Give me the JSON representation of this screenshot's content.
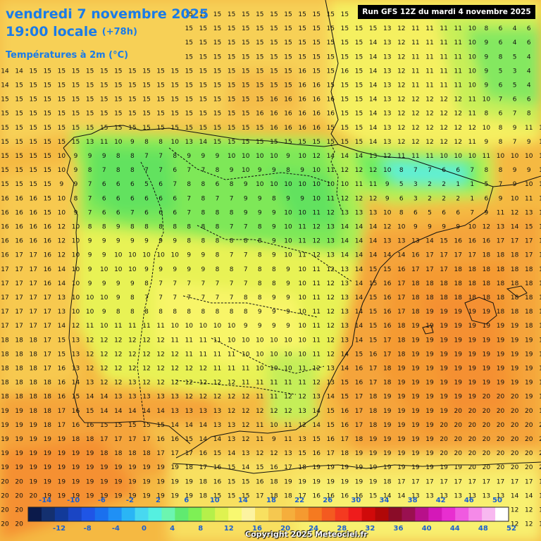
{
  "header": {
    "date": "vendredi 7 novembre 2025",
    "time": "19:00 locale",
    "offset": "(+78h)",
    "variable": "Températures à 2m (°C)"
  },
  "run_info": "Run GFS 12Z du mardi 4 novembre 2025",
  "copyright": "Copyright 2025 Meteociel.fr",
  "legend": {
    "upper_labels": [
      "-14",
      "-10",
      "-6",
      "-2",
      "2",
      "6",
      "10",
      "14",
      "18",
      "22",
      "26",
      "30",
      "34",
      "38",
      "42",
      "46",
      "50"
    ],
    "lower_labels": [
      "-12",
      "-8",
      "-4",
      "0",
      "4",
      "8",
      "12",
      "16",
      "20",
      "24",
      "28",
      "32",
      "36",
      "40",
      "44",
      "48",
      "52"
    ],
    "colors": [
      "#0b1a4a",
      "#14306f",
      "#123a99",
      "#1a45c4",
      "#1f55e6",
      "#1a70ee",
      "#1f90f5",
      "#2ab5f5",
      "#48d8f0",
      "#55f0e0",
      "#6cf5b0",
      "#60ea70",
      "#7ef055",
      "#b5f04a",
      "#dff250",
      "#f8f870",
      "#fcf3a0",
      "#f8e060",
      "#f5c850",
      "#f5ae3c",
      "#f59a30",
      "#f57a20",
      "#f45a20",
      "#f43a20",
      "#ee1c1c",
      "#d00a0a",
      "#b00808",
      "#8a0c28",
      "#9a1050",
      "#b8108a",
      "#d418b8",
      "#e82ed0",
      "#f05ae0",
      "#f58ae8",
      "#f8b8f0",
      "#ffffff"
    ]
  },
  "map_values": {
    "row_00": "14 14 14 15 15 15 15 15 15 15 15 15 15 15 15 15 15 15 15 15 15 15 15 15 15 15 15 12 11 11 11 11 11 10 8 6 7 8 9",
    "row_01": "14 14 14 14 15 15 15 15 15 15 15 15 15 15 15 15 15 15 15 15 15 15 15 15 15 15 15 13 12 11 11 11 11 10 8 6 4 6 6",
    "row_02": "14 15 15 15 15 15 15 15 15 15 15 15 15 15 15 15 15 15 15 15 15 15 15 15 15 15 14 13 12 11 11 11 11 10 9 6 4 6 5",
    "row_03": "14 15 15 15 15 15 15 15 15 15 15 15 15 15 15 15 15 15 15 15 15 15 15 15 15 15 14 13 12 11 11 11 11 10 9 8 5 4 7",
    "row_04": "14 14 15 15 15 15 15 15 15 15 15 15 15 15 15 15 15 15 15 15 15 16 15 15 16 15 14 13 12 11 11 11 11 10 9 5 3 4 6",
    "row_05": "14 15 15 15 15 15 15 15 15 15 15 15 15 15 15 15 15 15 15 15 15 16 16 15 15 15 14 13 12 11 11 11 11 10 9 6 5 4 8",
    "row_06": "15 15 15 15 15 15 15 15 15 15 15 15 15 15 15 15 15 15 15 16 16 16 16 16 15 15 14 13 12 12 12 12 12 11 10 7 6 6 8",
    "row_07": "15 15 15 15 15 15 15 15 15 15 15 15 15 15 15 15 15 15 16 16 16 16 16 16 15 15 14 13 12 12 12 12 12 11 8 6 7 8 9",
    "row_08": "15 15 15 15 15 15 15 15 15 15 15 15 15 15 15 15 15 15 15 16 16 16 16 15 15 15 14 13 12 12 12 12 12 12 10 8 9 11 11",
    "row_09": "15 15 15 15 15 15 13 11 10 9 8 8 10 13 14 15 15 15 15 15 15 15 15 15 15 15 14 13 12 12 12 12 12 11 9 8 7 9 10",
    "row_10": "15 15 15 15 10 9 9 9 8 8 7 7 8 9 9 9 10 10 10 10 9 10 12 14 14 14 13 12 11 11 11 10 10 10 11 10 10 10 11",
    "row_11": "15 15 15 15 10 9 8 7 8 8 7 7 6 7 7 8 9 10 9 9 8 9 10 11 12 12 12 10 8 7 7 6 6 7 8 8 9 9 10",
    "row_12": "15 15 15 15 9 9 7 6 6 6 5 6 7 8 8 6 8 9 10 10 10 10 10 10 10 11 11 9 5 3 2 2 1 1 5 7 9 10 11",
    "row_13": "16 16 16 15 10 8 7 6 6 6 6 6 6 7 8 7 7 9 9 8 9 9 10 11 12 12 12 9 6 3 2 2 2 1 6 9 10 11 12",
    "row_14": "16 16 16 15 10 9 7 6 6 7 6 6 6 7 8 8 8 9 9 9 10 10 11 12 13 13 13 10 8 6 5 6 6 7 9 11 12 13 14",
    "row_15": "16 16 16 16 12 10 8 8 9 8 8 8 8 8 8 8 7 7 8 9 10 11 12 13 14 14 14 12 10 9 9 9 9 10 12 13 14 15 16",
    "row_16": "16 16 16 16 12 10 9 9 9 9 9 9 9 8 8 8 8 8 8 9 10 11 12 13 14 14 14 13 13 13 14 15 16 16 16 17 17 17 17",
    "row_17": "16 17 17 16 12 10 9 9 10 10 10 10 10 9 9 8 7 7 8 9 10 11 12 13 14 14 14 14 14 16 17 17 17 17 18 18 18 17 18",
    "row_18": "17 17 17 16 14 10 9 10 10 10 9 9 9 9 9 8 8 7 8 8 9 10 11 12 13 14 15 15 16 17 17 17 18 18 18 18 18 18 18",
    "row_19": "17 17 17 16 14 10 9 9 9 9 8 7 7 7 7 7 7 7 8 8 9 10 11 12 13 14 15 16 17 18 18 18 18 18 18 18 18 18 18",
    "row_20": "17 17 17 17 13 10 10 10 9 8 7 7 7 7 7 7 7 8 8 9 9 10 11 12 13 14 15 16 17 18 18 18 18 18 18 18 18 18 18",
    "row_21": "17 17 17 17 13 10 10 9 8 8 8 8 8 8 8 8 8 8 9 9 9 10 11 12 13 14 15 16 17 18 19 19 19 19 19 18 18 18 18",
    "row_22": "17 17 17 17 14 12 11 10 11 11 11 11 10 10 10 10 10 9 9 9 9 10 11 12 13 14 15 16 18 19 19 19 19 19 19 19 19 18 18",
    "row_23": "18 18 18 17 15 13 12 12 12 12 12 12 11 11 11 11 10 10 10 10 10 10 11 12 13 14 15 17 18 19 19 19 19 19 19 19 19 19 18",
    "row_24": "18 18 18 17 15 13 12 12 12 12 12 12 12 11 11 11 11 10 10 10 10 10 11 12 14 15 16 17 18 19 19 19 19 19 19 19 19 19 19",
    "row_25": "18 18 18 17 16 13 12 12 12 12 12 12 12 12 12 11 11 11 10 10 10 11 12 13 14 16 17 18 19 19 19 19 19 19 19 19 19 19 19",
    "row_26": "18 18 18 18 16 14 13 12 12 13 12 12 12 12 12 12 12 11 11 11 11 11 12 13 15 16 17 18 19 19 19 19 19 19 19 19 19 19 19",
    "row_27": "18 18 18 18 16 15 14 14 13 13 13 13 13 12 12 12 12 12 11 11 12 12 13 14 15 17 18 19 19 19 19 19 19 19 20 20 20 19 19",
    "row_28": "19 19 18 18 17 16 15 14 14 14 14 14 13 13 13 13 12 12 12 12 12 13 14 15 16 17 18 19 19 19 19 19 20 20 20 20 20 20 19",
    "row_29": "19 19 19 18 17 16 16 15 15 15 15 15 14 14 14 13 13 12 11 10 11 12 14 15 16 17 18 19 19 19 19 20 20 20 20 20 20 20 20",
    "row_30": "19 19 19 19 19 18 18 17 17 17 17 16 16 15 14 14 13 12 11 9 11 13 15 16 17 18 19 19 19 19 19 20 20 20 20 20 20 20 20",
    "row_31": "19 19 19 19 19 19 19 18 18 18 18 17 17 17 16 15 14 13 12 12 13 15 16 17 18 19 19 19 19 19 19 20 20 20 20 20 20 20 20",
    "row_32": "19 19 19 19 19 19 19 19 19 19 19 19 19 18 17 16 15 14 15 16 17 18 19 19 19 19 19 19 19 19 19 19 19 20 20 20 20 20 20",
    "row_33": "20 20 19 19 19 19 19 19 19 19 19 19 19 19 18 16 15 15 16 18 19 19 19 19 19 19 19 18 17 17 17 17 17 17 17 17 17 17 17",
    "row_34": "20 20 20 19 19 19 19 19 19 19 19 19 19 19 18 15 15 15 17 18 18 17 16 16 16 16 15 14 14 13 13 13 13 13 13 13 14 14 14",
    "row_35": "20 20 20 20 20 20 20 20 19 19 19 19 19 19 17 15 15 15 16 17 16 15 15 15 15 14 13 12 12 12 12 12 12 12 12 12 12 12 12",
    "row_36": "20 20 20 20 20 20 20 20 19 19 19 19 19 18 17 15 15 15 15 15 15 15 15 15 15 14 13 12 12 12 12 12 12 12 12 12 12 12 12",
    "row_37": "20 20 20 20 20 20 20 20 20 19 19 19 19 18 16 15 15 15 15 15 15 15 15 14 14 13 13 12 12 12 12 12 12 12 12 12 12 12 12"
  }
}
